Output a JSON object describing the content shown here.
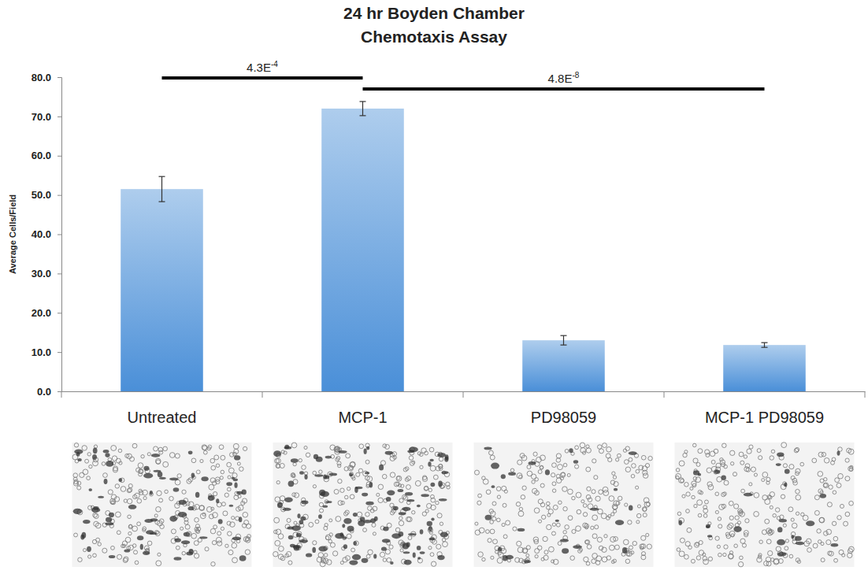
{
  "chart_data": {
    "type": "bar",
    "title": "24 hr Boyden Chamber Chemotaxis Assay",
    "y_label": "Average Cells/Field",
    "categories": [
      "Untreated",
      "MCP-1",
      "PD98059",
      "MCP-1 PD98059"
    ],
    "values": [
      51.5,
      72.0,
      13.0,
      11.8
    ],
    "errors": [
      3.2,
      1.8,
      1.2,
      0.6
    ],
    "color": "#4a8fd8",
    "ylim": [
      0,
      80
    ],
    "yticks": [
      {
        "value": 0,
        "label": "0.0"
      },
      {
        "value": 10,
        "label": "10.0"
      },
      {
        "value": 20,
        "label": "20.0"
      },
      {
        "value": 30,
        "label": "30.0"
      },
      {
        "value": 40,
        "label": "40.0"
      },
      {
        "value": 50,
        "label": "50.0"
      },
      {
        "value": 60,
        "label": "60.0"
      },
      {
        "value": 70,
        "label": "70.0"
      },
      {
        "value": 80,
        "label": "80.0"
      }
    ],
    "grid": false,
    "annotations": [
      {
        "text": "4.3E-4",
        "from": "Untreated",
        "to": "MCP-1"
      },
      {
        "text": "4.8E-8",
        "from": "MCP-1",
        "to": "MCP-1 PD98059"
      }
    ]
  }
}
